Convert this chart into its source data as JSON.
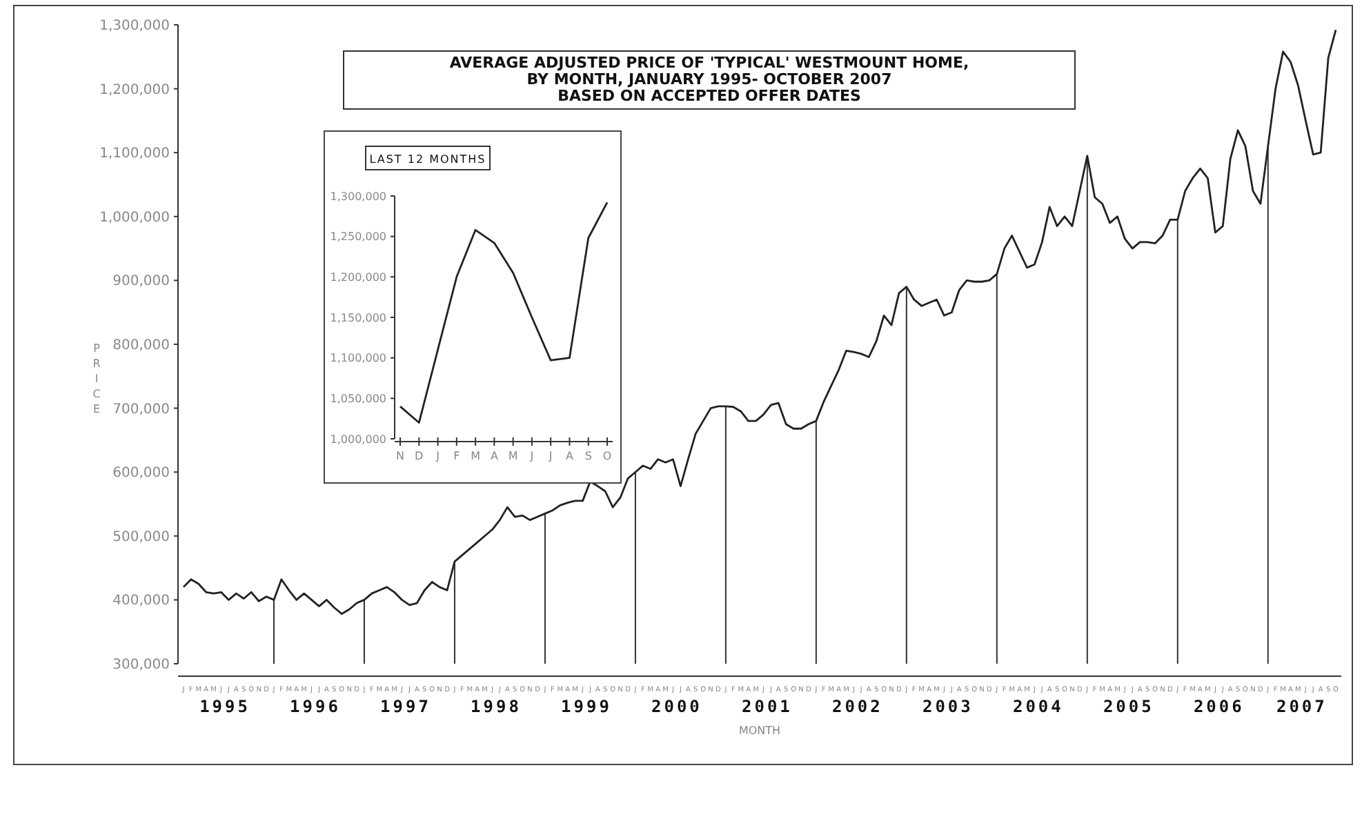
{
  "chart_data": [
    {
      "type": "line",
      "title": "AVERAGE ADJUSTED PRICE OF 'TYPICAL' WESTMOUNT HOME,\nBY MONTH, JANUARY 1995- OCTOBER 2007\nBASED ON ACCEPTED OFFER DATES",
      "ylabel": "PRICE",
      "xlabel": "MONTH",
      "categories": [
        "J",
        "F",
        "M",
        "A",
        "M",
        "J",
        "J",
        "A",
        "S",
        "O",
        "N",
        "D",
        "J",
        "F",
        "M",
        "A",
        "M",
        "J",
        "J",
        "A",
        "S",
        "O",
        "N",
        "D",
        "J",
        "F",
        "M",
        "A",
        "M",
        "J",
        "J",
        "A",
        "S",
        "O",
        "N",
        "D",
        "J",
        "F",
        "M",
        "A",
        "M",
        "J",
        "J",
        "A",
        "S",
        "O",
        "N",
        "D",
        "J",
        "F",
        "M",
        "A",
        "M",
        "J",
        "J",
        "A",
        "S",
        "O",
        "N",
        "D",
        "J",
        "F",
        "M",
        "A",
        "M",
        "J",
        "J",
        "A",
        "S",
        "O",
        "N",
        "D",
        "J",
        "F",
        "M",
        "A",
        "M",
        "J",
        "J",
        "A",
        "S",
        "O",
        "N",
        "D",
        "J",
        "F",
        "M",
        "A",
        "M",
        "J",
        "J",
        "A",
        "S",
        "O",
        "N",
        "D",
        "J",
        "F",
        "M",
        "A",
        "M",
        "J",
        "J",
        "A",
        "S",
        "O",
        "N",
        "D",
        "J",
        "F",
        "M",
        "A",
        "M",
        "J",
        "J",
        "A",
        "S",
        "O",
        "N",
        "D",
        "J",
        "F",
        "M",
        "A",
        "M",
        "J",
        "J",
        "A",
        "S",
        "O",
        "N",
        "D",
        "J",
        "F",
        "M",
        "A",
        "M",
        "J",
        "J",
        "A",
        "S",
        "O",
        "N",
        "D",
        "J",
        "F",
        "M",
        "A",
        "M",
        "J",
        "J",
        "A",
        "S",
        "O"
      ],
      "series": [
        {
          "color": "#222222",
          "values": [
            420000,
            432000,
            425000,
            412000,
            410000,
            412000,
            400000,
            410000,
            402000,
            412000,
            398000,
            405000,
            400000,
            432000,
            415000,
            400000,
            410000,
            400000,
            390000,
            400000,
            388000,
            378000,
            385000,
            395000,
            400000,
            410000,
            415000,
            420000,
            412000,
            400000,
            392000,
            395000,
            415000,
            428000,
            420000,
            415000,
            460000,
            470000,
            480000,
            490000,
            500000,
            510000,
            525000,
            545000,
            530000,
            532000,
            525000,
            530000,
            535000,
            540000,
            548000,
            552000,
            555000,
            555000,
            585000,
            578000,
            570000,
            545000,
            560000,
            590000,
            600000,
            610000,
            605000,
            620000,
            615000,
            620000,
            578000,
            620000,
            660000,
            680000,
            700000,
            703000,
            703000,
            702000,
            695000,
            680000,
            680000,
            690000,
            705000,
            708000,
            675000,
            668000,
            668000,
            675000,
            680000,
            710000,
            735000,
            760000,
            790000,
            788000,
            785000,
            780000,
            805000,
            845000,
            830000,
            880000,
            890000,
            870000,
            860000,
            865000,
            870000,
            845000,
            850000,
            885000,
            900000,
            898000,
            898000,
            900000,
            910000,
            950000,
            970000,
            945000,
            920000,
            925000,
            960000,
            1015000,
            985000,
            1000000,
            985000,
            1040000,
            1095000,
            1030000,
            1020000,
            990000,
            1000000,
            965000,
            950000,
            960000,
            960000,
            958000,
            970000,
            995000,
            995000,
            1040000,
            1060000,
            1075000,
            1060000,
            975000,
            985000,
            1090000,
            1135000,
            1110000,
            1040000,
            1020000,
            1110000,
            1200000,
            1258000,
            1242000,
            1205000,
            1150000,
            1097000,
            1100000,
            1248000,
            1292000
          ]
        },
        {
          "type": "bar",
          "color": "#333333",
          "values": [
            null,
            null,
            null,
            null,
            null,
            null,
            null,
            null,
            null,
            null,
            null,
            null,
            400000,
            null,
            null,
            null,
            null,
            null,
            null,
            null,
            null,
            null,
            null,
            null,
            400000,
            null,
            null,
            null,
            null,
            null,
            null,
            null,
            null,
            null,
            null,
            null,
            460000,
            null,
            null,
            null,
            null,
            null,
            null,
            null,
            null,
            null,
            null,
            null,
            535000,
            null,
            null,
            null,
            null,
            null,
            null,
            null,
            null,
            null,
            null,
            null,
            600000,
            null,
            null,
            null,
            null,
            null,
            null,
            null,
            null,
            null,
            null,
            null,
            703000,
            null,
            null,
            null,
            null,
            null,
            null,
            null,
            null,
            null,
            null,
            null,
            680000,
            null,
            null,
            null,
            null,
            null,
            null,
            null,
            null,
            null,
            null,
            null,
            890000,
            null,
            null,
            null,
            null,
            null,
            null,
            null,
            null,
            null,
            null,
            null,
            910000,
            null,
            null,
            null,
            null,
            null,
            null,
            null,
            null,
            null,
            null,
            null,
            1095000,
            null,
            null,
            null,
            null,
            null,
            null,
            null,
            null,
            null,
            null,
            null,
            995000,
            null,
            null,
            null,
            null,
            null,
            null,
            null,
            null,
            null,
            null,
            null,
            1110000,
            null,
            null,
            null,
            null,
            null,
            null,
            null,
            null,
            null
          ]
        }
      ],
      "ylim": [
        300000,
        1300000
      ],
      "yticks": [
        {
          "value": 300000,
          "label": "300,000"
        },
        {
          "value": 400000,
          "label": "400,000"
        },
        {
          "value": 500000,
          "label": "500,000"
        },
        {
          "value": 600000,
          "label": "600,000"
        },
        {
          "value": 700000,
          "label": "700,000"
        },
        {
          "value": 800000,
          "label": "800,000"
        },
        {
          "value": 900000,
          "label": "900,000"
        },
        {
          "value": 1000000,
          "label": "1,000,000"
        },
        {
          "value": 1100000,
          "label": "1,100,000"
        },
        {
          "value": 1200000,
          "label": "1,200,000"
        },
        {
          "value": 1300000,
          "label": "1,300,000"
        }
      ],
      "annotations": [
        "1995",
        "1996",
        "1997",
        "1998",
        "1999",
        "2000",
        "2001",
        "2002",
        "2003",
        "2004",
        "2005",
        "2006",
        "2007"
      ]
    },
    {
      "type": "line",
      "title": "LAST 12 MONTHS",
      "color": "#222222",
      "categories": [
        "N",
        "D",
        "J",
        "F",
        "M",
        "A",
        "M",
        "J",
        "J",
        "A",
        "S",
        "O"
      ],
      "values": [
        1040000,
        1020000,
        1110000,
        1200000,
        1258000,
        1242000,
        1205000,
        1150000,
        1097000,
        1100000,
        1248000,
        1292000
      ],
      "ylim": [
        1000000,
        1300000
      ],
      "yticks": [
        {
          "value": 1000000,
          "label": "1,000,000"
        },
        {
          "value": 1050000,
          "label": "1,050,000"
        },
        {
          "value": 1100000,
          "label": "1,100,000"
        },
        {
          "value": 1150000,
          "label": "1,150,000"
        },
        {
          "value": 1200000,
          "label": "1,200,000"
        },
        {
          "value": 1250000,
          "label": "1,250,000"
        },
        {
          "value": 1300000,
          "label": "1,300,000"
        }
      ]
    }
  ]
}
